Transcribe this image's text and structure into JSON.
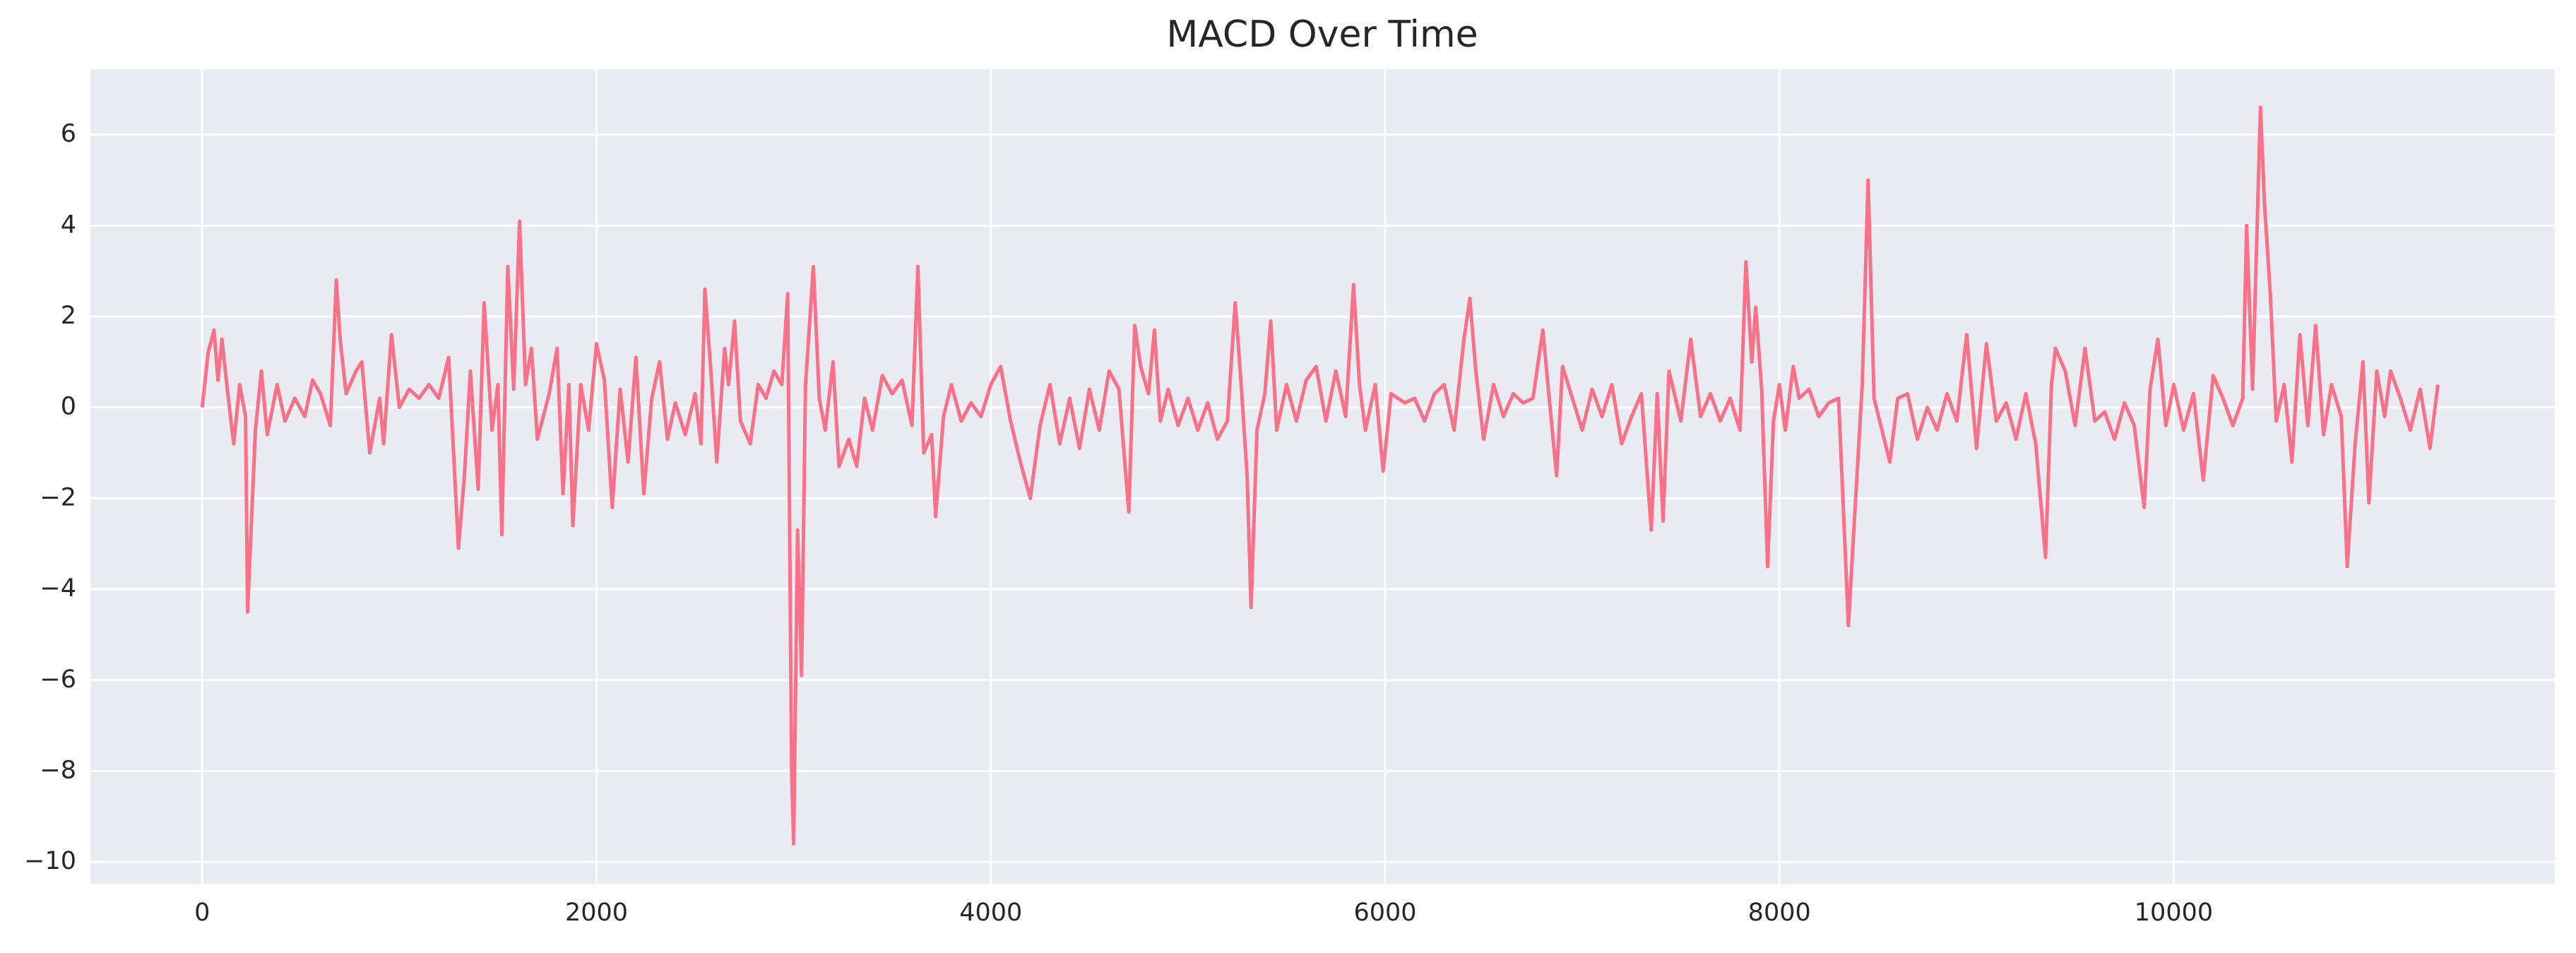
{
  "chart_data": {
    "type": "line",
    "title": "MACD Over Time",
    "x": [
      0,
      30,
      60,
      80,
      100,
      130,
      160,
      190,
      220,
      230,
      250,
      270,
      300,
      330,
      380,
      420,
      470,
      520,
      560,
      600,
      650,
      680,
      700,
      730,
      780,
      810,
      850,
      900,
      920,
      960,
      1000,
      1050,
      1100,
      1150,
      1200,
      1250,
      1300,
      1330,
      1360,
      1400,
      1430,
      1470,
      1500,
      1520,
      1550,
      1580,
      1610,
      1640,
      1670,
      1700,
      1760,
      1800,
      1830,
      1860,
      1880,
      1920,
      1960,
      2000,
      2040,
      2080,
      2120,
      2160,
      2200,
      2240,
      2280,
      2320,
      2360,
      2400,
      2450,
      2500,
      2530,
      2550,
      2580,
      2610,
      2650,
      2670,
      2700,
      2730,
      2780,
      2820,
      2860,
      2900,
      2940,
      2970,
      2990,
      3000,
      3020,
      3040,
      3060,
      3080,
      3100,
      3130,
      3160,
      3200,
      3230,
      3280,
      3320,
      3360,
      3400,
      3450,
      3500,
      3550,
      3600,
      3630,
      3660,
      3700,
      3720,
      3760,
      3800,
      3850,
      3900,
      3950,
      4000,
      4050,
      4100,
      4150,
      4200,
      4250,
      4300,
      4350,
      4400,
      4450,
      4500,
      4550,
      4600,
      4650,
      4700,
      4730,
      4760,
      4800,
      4830,
      4860,
      4900,
      4950,
      5000,
      5050,
      5100,
      5150,
      5200,
      5240,
      5270,
      5300,
      5320,
      5350,
      5390,
      5420,
      5450,
      5500,
      5550,
      5600,
      5650,
      5700,
      5750,
      5800,
      5840,
      5870,
      5900,
      5950,
      5990,
      6030,
      6100,
      6150,
      6200,
      6250,
      6300,
      6350,
      6400,
      6430,
      6460,
      6500,
      6550,
      6600,
      6650,
      6700,
      6750,
      6800,
      6830,
      6870,
      6900,
      6950,
      7000,
      7050,
      7100,
      7150,
      7200,
      7250,
      7300,
      7350,
      7380,
      7410,
      7440,
      7500,
      7550,
      7600,
      7650,
      7700,
      7750,
      7800,
      7830,
      7860,
      7880,
      7910,
      7940,
      7970,
      8000,
      8030,
      8070,
      8100,
      8150,
      8200,
      8250,
      8300,
      8350,
      8380,
      8420,
      8450,
      8480,
      8520,
      8560,
      8600,
      8650,
      8700,
      8750,
      8800,
      8850,
      8900,
      8950,
      9000,
      9050,
      9100,
      9150,
      9200,
      9250,
      9300,
      9350,
      9380,
      9400,
      9450,
      9500,
      9550,
      9600,
      9650,
      9700,
      9750,
      9800,
      9850,
      9880,
      9920,
      9960,
      10000,
      10050,
      10100,
      10150,
      10200,
      10250,
      10300,
      10350,
      10370,
      10400,
      10440,
      10460,
      10490,
      10520,
      10560,
      10600,
      10640,
      10680,
      10720,
      10760,
      10800,
      10850,
      10880,
      10920,
      10960,
      10990,
      11030,
      11070,
      11100,
      11150,
      11200,
      11250,
      11300,
      11340
    ],
    "values": [
      0,
      1.2,
      1.7,
      0.6,
      1.5,
      0.3,
      -0.8,
      0.5,
      -0.2,
      -4.5,
      -2.5,
      -0.5,
      0.8,
      -0.6,
      0.5,
      -0.3,
      0.2,
      -0.2,
      0.6,
      0.3,
      -0.4,
      2.8,
      1.5,
      0.3,
      0.8,
      1.0,
      -1.0,
      0.2,
      -0.8,
      1.6,
      0,
      0.4,
      0.2,
      0.5,
      0.2,
      1.1,
      -3.1,
      -1.5,
      0.8,
      -1.8,
      2.3,
      -0.5,
      0.5,
      -2.8,
      3.1,
      0.4,
      4.1,
      0.5,
      1.3,
      -0.7,
      0.3,
      1.3,
      -1.9,
      0.5,
      -2.6,
      0.5,
      -0.5,
      1.4,
      0.6,
      -2.2,
      0.4,
      -1.2,
      1.1,
      -1.9,
      0.2,
      1.0,
      -0.7,
      0.1,
      -0.6,
      0.3,
      -0.8,
      2.6,
      0.8,
      -1.2,
      1.3,
      0.5,
      1.9,
      -0.3,
      -0.8,
      0.5,
      0.2,
      0.8,
      0.5,
      2.5,
      -8,
      -9.6,
      -2.7,
      -5.9,
      0.5,
      1.8,
      3.1,
      0.2,
      -0.5,
      1.0,
      -1.3,
      -0.7,
      -1.3,
      0.2,
      -0.5,
      0.7,
      0.3,
      0.6,
      -0.4,
      3.1,
      -1.0,
      -0.6,
      -2.4,
      -0.2,
      0.5,
      -0.3,
      0.1,
      -0.2,
      0.5,
      0.9,
      -0.3,
      -1.2,
      -2.0,
      -0.4,
      0.5,
      -0.8,
      0.2,
      -0.9,
      0.4,
      -0.5,
      0.8,
      0.4,
      -2.3,
      1.8,
      0.9,
      0.3,
      1.7,
      -0.3,
      0.4,
      -0.4,
      0.2,
      -0.5,
      0.1,
      -0.7,
      -0.3,
      2.3,
      0.5,
      -1.5,
      -4.4,
      -0.5,
      0.3,
      1.9,
      -0.5,
      0.5,
      -0.3,
      0.6,
      0.9,
      -0.3,
      0.8,
      -0.2,
      2.7,
      0.5,
      -0.5,
      0.5,
      -1.4,
      0.3,
      0.1,
      0.2,
      -0.3,
      0.3,
      0.5,
      -0.5,
      1.5,
      2.4,
      0.8,
      -0.7,
      0.5,
      -0.2,
      0.3,
      0.1,
      0.2,
      1.7,
      0.3,
      -1.5,
      0.9,
      0.2,
      -0.5,
      0.4,
      -0.2,
      0.5,
      -0.8,
      -0.2,
      0.3,
      -2.7,
      0.3,
      -2.5,
      0.8,
      -0.3,
      1.5,
      -0.2,
      0.3,
      -0.3,
      0.2,
      -0.5,
      3.2,
      1.0,
      2.2,
      0.4,
      -3.5,
      -0.3,
      0.5,
      -0.5,
      0.9,
      0.2,
      0.4,
      -0.2,
      0.1,
      0.2,
      -4.8,
      -2.5,
      0.5,
      5.0,
      0.2,
      -0.5,
      -1.2,
      0.2,
      0.3,
      -0.7,
      0.0,
      -0.5,
      0.3,
      -0.3,
      1.6,
      -0.9,
      1.4,
      -0.3,
      0.1,
      -0.7,
      0.3,
      -0.8,
      -3.3,
      0.5,
      1.3,
      0.8,
      -0.4,
      1.3,
      -0.3,
      -0.1,
      -0.7,
      0.1,
      -0.4,
      -2.2,
      0.4,
      1.5,
      -0.4,
      0.5,
      -0.5,
      0.3,
      -1.6,
      0.7,
      0.2,
      -0.4,
      0.2,
      4.0,
      0.4,
      6.6,
      4.5,
      2.5,
      -0.3,
      0.5,
      -1.2,
      1.6,
      -0.4,
      1.8,
      -0.6,
      0.5,
      -0.2,
      -3.5,
      -0.8,
      1.0,
      -2.1,
      0.8,
      -0.2,
      0.8,
      0.2,
      -0.5,
      0.4,
      -0.9,
      0.5
    ],
    "color": "#f77189",
    "xlim": [
      -567,
      11933
    ],
    "xticks": [
      0,
      2000,
      4000,
      6000,
      8000,
      10000
    ],
    "ylim": [
      -10.48,
      7.44
    ],
    "yticks": [
      {
        "value": -10,
        "label": "−10"
      },
      {
        "value": -8,
        "label": "−8"
      },
      {
        "value": -6,
        "label": "−6"
      },
      {
        "value": -4,
        "label": "−4"
      },
      {
        "value": -2,
        "label": "−2"
      },
      0,
      2,
      4,
      6
    ],
    "grid": true
  }
}
